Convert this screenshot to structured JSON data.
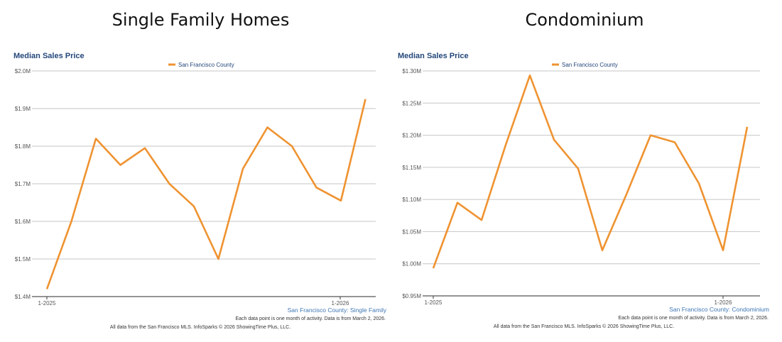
{
  "charts_header": {
    "left_title": "Single Family Homes",
    "right_title": "Condominium"
  },
  "chart_data": [
    {
      "type": "line",
      "title": "Median Sales Price",
      "legend": "San Francisco County",
      "legend_position": "top-center",
      "grid": true,
      "subtitle": "San Francisco County: Single Family",
      "note": "Each data point is one month of activity. Data is from March 2, 2026.",
      "footer": "All data from the San Francisco MLS. InfoSparks © 2026 ShowingTime Plus, LLC.",
      "x_tick_labels": [
        "1-2025",
        "1-2026"
      ],
      "ylim": [
        1.4,
        2.0
      ],
      "y_ticks": [
        1.4,
        1.5,
        1.6,
        1.7,
        1.8,
        1.9,
        2.0
      ],
      "y_tick_labels": [
        "$1.4M",
        "$1.5M",
        "$1.6M",
        "$1.7M",
        "$1.8M",
        "$1.9M",
        "$2.0M"
      ],
      "series": [
        {
          "name": "San Francisco County",
          "color": "#ef9331",
          "x": [
            "2025-01",
            "2025-02",
            "2025-03",
            "2025-04",
            "2025-05",
            "2025-06",
            "2025-07",
            "2025-08",
            "2025-09",
            "2025-10",
            "2025-11",
            "2025-12",
            "2026-01",
            "2026-02"
          ],
          "values": [
            1.42,
            1.6,
            1.82,
            1.75,
            1.795,
            1.7,
            1.64,
            1.5,
            1.74,
            1.85,
            1.8,
            1.69,
            1.655,
            1.925
          ]
        }
      ]
    },
    {
      "type": "line",
      "title": "Median Sales Price",
      "legend": "San Francisco County",
      "legend_position": "top-center",
      "grid": true,
      "subtitle": "San Francisco County: Condominium",
      "note": "Each data point is one month of activity. Data is from March 2, 2026.",
      "footer": "All data from the San Francisco MLS. InfoSparks © 2026 ShowingTime Plus, LLC.",
      "x_tick_labels": [
        "1-2025",
        "1-2026"
      ],
      "ylim": [
        0.95,
        1.3
      ],
      "y_ticks": [
        0.95,
        1.0,
        1.05,
        1.1,
        1.15,
        1.2,
        1.25,
        1.3
      ],
      "y_tick_labels": [
        "$0.95M",
        "$1.00M",
        "$1.05M",
        "$1.10M",
        "$1.15M",
        "$1.20M",
        "$1.25M",
        "$1.30M"
      ],
      "series": [
        {
          "name": "San Francisco County",
          "color": "#ef9331",
          "x": [
            "2025-01",
            "2025-02",
            "2025-03",
            "2025-04",
            "2025-05",
            "2025-06",
            "2025-07",
            "2025-08",
            "2025-09",
            "2025-10",
            "2025-11",
            "2025-12",
            "2026-01",
            "2026-02"
          ],
          "values": [
            0.993,
            1.095,
            1.068,
            1.185,
            1.293,
            1.193,
            1.148,
            1.021,
            1.108,
            1.2,
            1.189,
            1.125,
            1.021,
            1.213
          ]
        }
      ]
    }
  ]
}
